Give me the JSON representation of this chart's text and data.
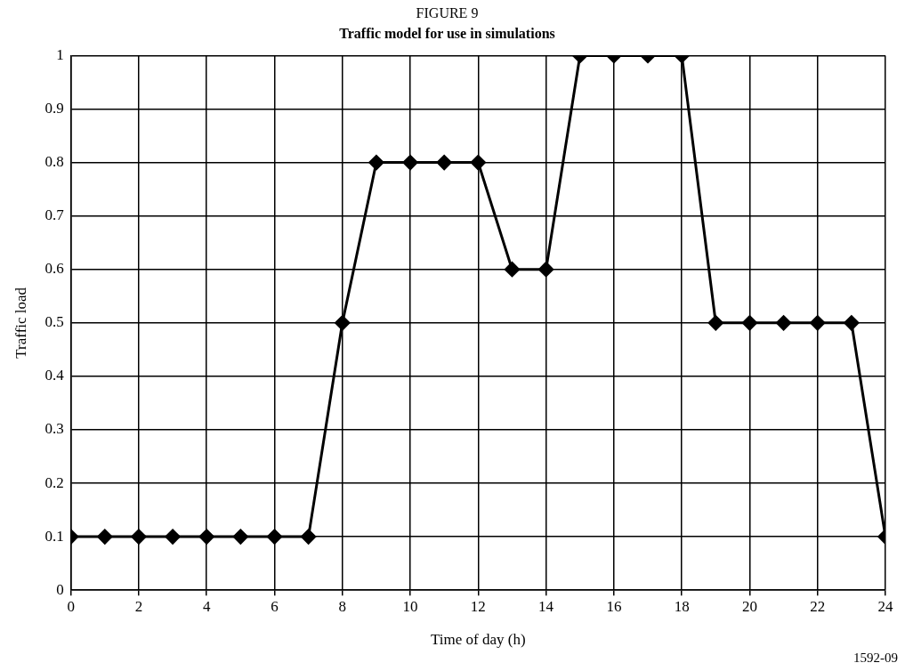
{
  "chart_data": {
    "type": "line",
    "title": "FIGURE 9",
    "subtitle": "Traffic model for use in simulations",
    "xlabel": "Time of day (h)",
    "ylabel": "Traffic load",
    "x": [
      0,
      1,
      2,
      3,
      4,
      5,
      6,
      7,
      8,
      9,
      10,
      11,
      12,
      13,
      14,
      15,
      16,
      17,
      18,
      19,
      20,
      21,
      22,
      23,
      24
    ],
    "series": [
      {
        "color": "#000000",
        "values": [
          0.1,
          0.1,
          0.1,
          0.1,
          0.1,
          0.1,
          0.1,
          0.1,
          0.5,
          0.8,
          0.8,
          0.8,
          0.8,
          0.6,
          0.6,
          1,
          1,
          1,
          1,
          0.5,
          0.5,
          0.5,
          0.5,
          0.5,
          0.1
        ]
      }
    ],
    "xlim": [
      0,
      24
    ],
    "xticks": [
      0,
      2,
      4,
      6,
      8,
      10,
      12,
      14,
      16,
      18,
      20,
      22,
      24
    ],
    "ylim": [
      0,
      1
    ],
    "yticks": [
      0,
      0.1,
      0.2,
      0.3,
      0.4,
      0.5,
      0.6,
      0.7,
      0.8,
      0.9,
      1
    ],
    "grid": true,
    "legend": false,
    "marker": "diamond",
    "line_style": "solid",
    "annotations": [
      "1592-09"
    ]
  }
}
